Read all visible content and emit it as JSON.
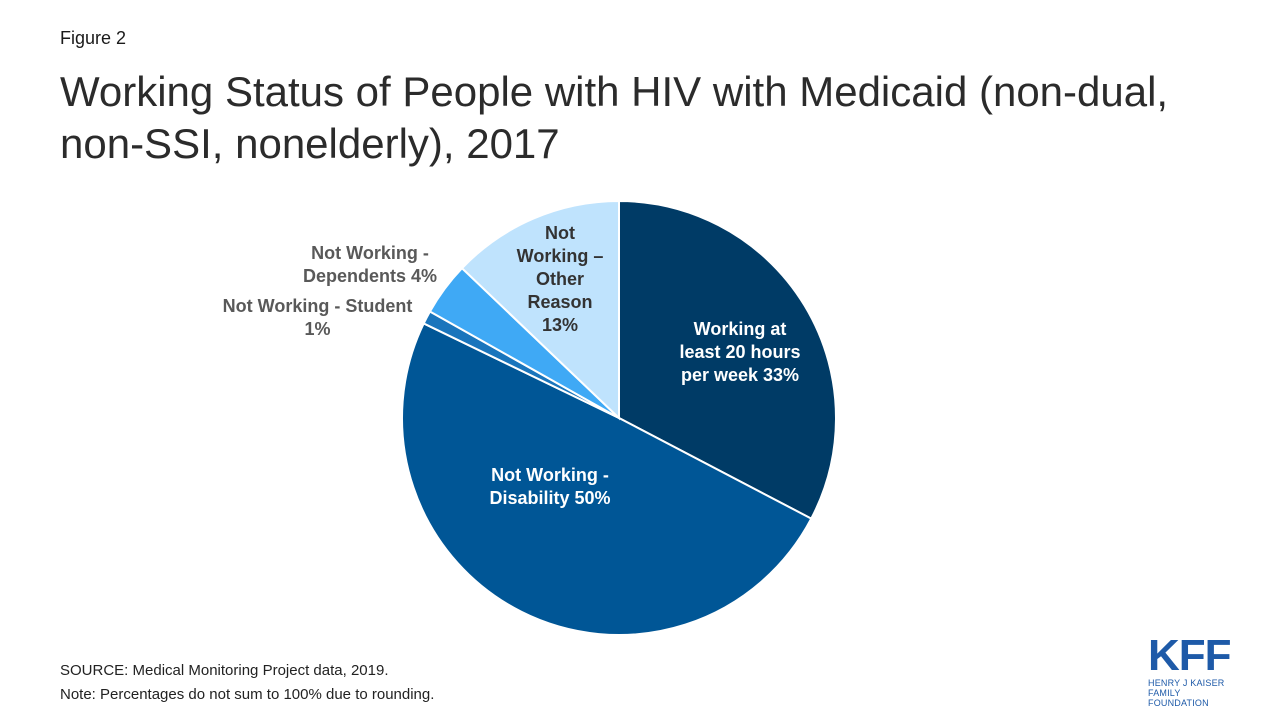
{
  "figure_label": "Figure 2",
  "title": "Working Status of People with HIV with Medicaid (non-dual, non-SSI, nonelderly), 2017",
  "chart_data": {
    "type": "pie",
    "title": "Working Status of People with HIV with Medicaid (non-dual, non-SSI, nonelderly), 2017",
    "slices": [
      {
        "label": "Working at least 20 hours per week 33%",
        "value": 33,
        "color": "#003b66",
        "label_color": "#ffffff"
      },
      {
        "label": "Not Working - Disability  50%",
        "value": 50,
        "color": "#005696",
        "label_color": "#ffffff"
      },
      {
        "label": "Not Working - Student 1%",
        "value": 1,
        "color": "#1a75bc",
        "label_color": "#595959"
      },
      {
        "label": "Not Working - Dependents 4%",
        "value": 4,
        "color": "#3fa9f5",
        "label_color": "#595959"
      },
      {
        "label": "Not Working – Other Reason 13%",
        "value": 13,
        "color": "#bfe3fd",
        "label_color": "#333333"
      }
    ],
    "start_angle_deg": 0,
    "direction": "clockwise"
  },
  "footer": {
    "source": "SOURCE: Medical Monitoring Project data, 2019.",
    "note": "Note: Percentages do not sum to 100% due to rounding."
  },
  "logo": {
    "mark": "KFF",
    "line1": "HENRY J KAISER",
    "line2": "FAMILY FOUNDATION",
    "color": "#1e5aa8"
  }
}
